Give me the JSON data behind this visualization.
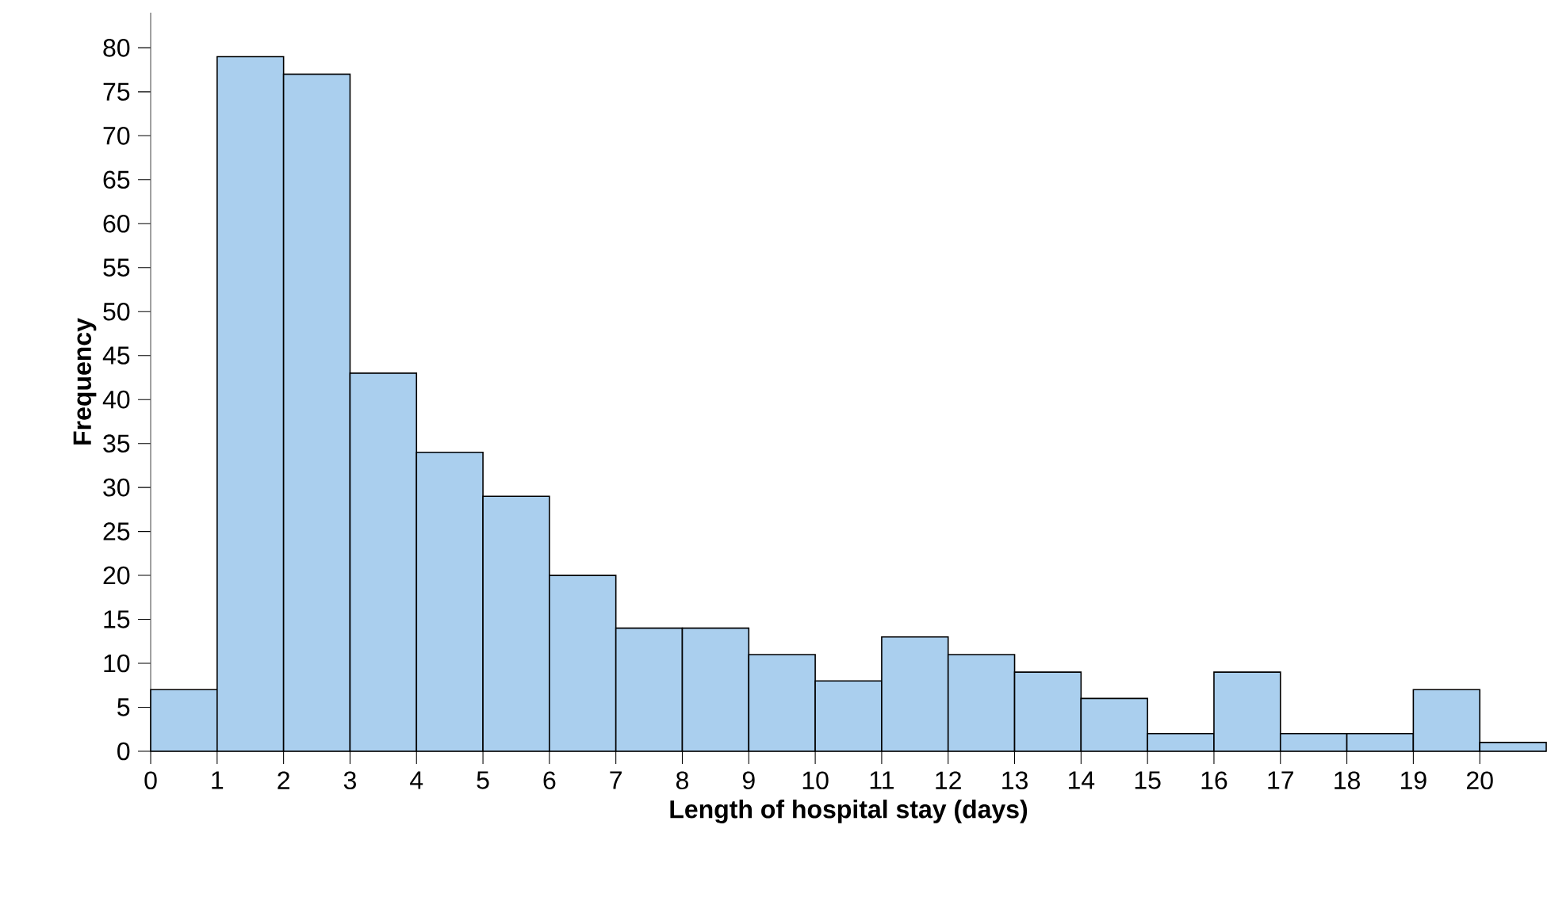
{
  "chart_data": {
    "type": "histogram",
    "xlabel": "Length of hospital stay (days)",
    "ylabel": "Frequency",
    "color": "#aacfee",
    "bins": [
      0,
      1,
      2,
      3,
      4,
      5,
      6,
      7,
      8,
      9,
      10,
      11,
      12,
      13,
      14,
      15,
      16,
      17,
      18,
      19,
      20,
      21
    ],
    "values": [
      7,
      79,
      77,
      43,
      34,
      29,
      20,
      14,
      14,
      11,
      8,
      13,
      11,
      9,
      6,
      2,
      9,
      2,
      2,
      7,
      1
    ],
    "xlim": [
      0,
      21
    ],
    "ylim": [
      0,
      84
    ],
    "xticks": [
      0,
      1,
      2,
      3,
      4,
      5,
      6,
      7,
      8,
      9,
      10,
      11,
      12,
      13,
      14,
      15,
      16,
      17,
      18,
      19,
      20
    ],
    "yticks": [
      0,
      5,
      10,
      15,
      20,
      25,
      30,
      35,
      40,
      45,
      50,
      55,
      60,
      65,
      70,
      75,
      80
    ],
    "grid": false
  }
}
